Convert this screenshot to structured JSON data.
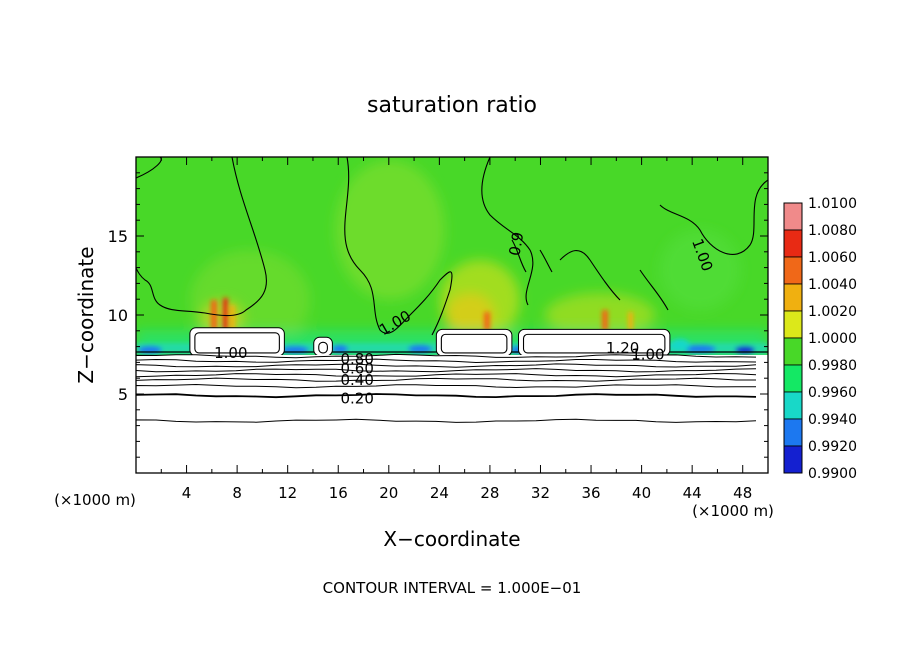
{
  "chart_data": {
    "type": "heatmap",
    "title": "saturation ratio",
    "xlabel": "X−coordinate",
    "ylabel": "Z−coordinate",
    "x_unit_left": "(×1000 m)",
    "x_unit_right": "(×1000 m)",
    "xlim": [
      0,
      50
    ],
    "ylim": [
      0,
      20
    ],
    "x_ticks": [
      4,
      8,
      12,
      16,
      20,
      24,
      28,
      32,
      36,
      40,
      44,
      48
    ],
    "x_tick_labels": [
      "4",
      "8",
      "12",
      "16",
      "20",
      "24",
      "28",
      "32",
      "36",
      "40",
      "44",
      "48"
    ],
    "y_ticks": [
      5,
      10,
      15
    ],
    "y_tick_labels": [
      "5",
      "10",
      "15"
    ],
    "footer": "CONTOUR INTERVAL = 1.000E−01",
    "colorbar": {
      "levels": [
        "1.0100",
        "1.0080",
        "1.0060",
        "1.0040",
        "1.0020",
        "1.0000",
        "0.9980",
        "0.9960",
        "0.9940",
        "0.9920",
        "0.9900"
      ],
      "colors": [
        "#f08a8a",
        "#e82a14",
        "#f06818",
        "#f0b010",
        "#dce81a",
        "#48d828",
        "#14e864",
        "#18d8c8",
        "#1c78f0",
        "#1420d0",
        "#280c78"
      ]
    },
    "contour_labels": [
      {
        "text": "1.00",
        "x": 7.5,
        "y": 7.6
      },
      {
        "text": "0.80",
        "x": 17.5,
        "y": 7.2
      },
      {
        "text": "0.60",
        "x": 17.5,
        "y": 6.6
      },
      {
        "text": "0.40",
        "x": 17.5,
        "y": 5.9
      },
      {
        "text": "0.20",
        "x": 17.5,
        "y": 4.7
      },
      {
        "text": "1.00",
        "x": 20.5,
        "y": 9.5
      },
      {
        "text": "1.20",
        "x": 38.5,
        "y": 7.9
      },
      {
        "text": "1.00",
        "x": 40.5,
        "y": 7.5
      },
      {
        "text": "1.00",
        "x": 44.8,
        "y": 13.8
      },
      {
        "text": "0.9",
        "x": 30.1,
        "y": 14.5
      }
    ],
    "lower_contours_z": [
      7.4,
      7.1,
      6.8,
      6.5,
      6.2,
      5.9,
      5.5,
      4.9,
      3.3
    ],
    "cloud_blocks": [
      {
        "x0": 4.5,
        "x1": 11.5,
        "z0": 7.6,
        "z1": 9.0
      },
      {
        "x0": 14.3,
        "x1": 15.3,
        "z0": 7.6,
        "z1": 8.4
      },
      {
        "x0": 24.0,
        "x1": 29.5,
        "z0": 7.6,
        "z1": 8.9
      },
      {
        "x0": 30.5,
        "x1": 42.0,
        "z0": 7.6,
        "z1": 8.9
      }
    ]
  }
}
